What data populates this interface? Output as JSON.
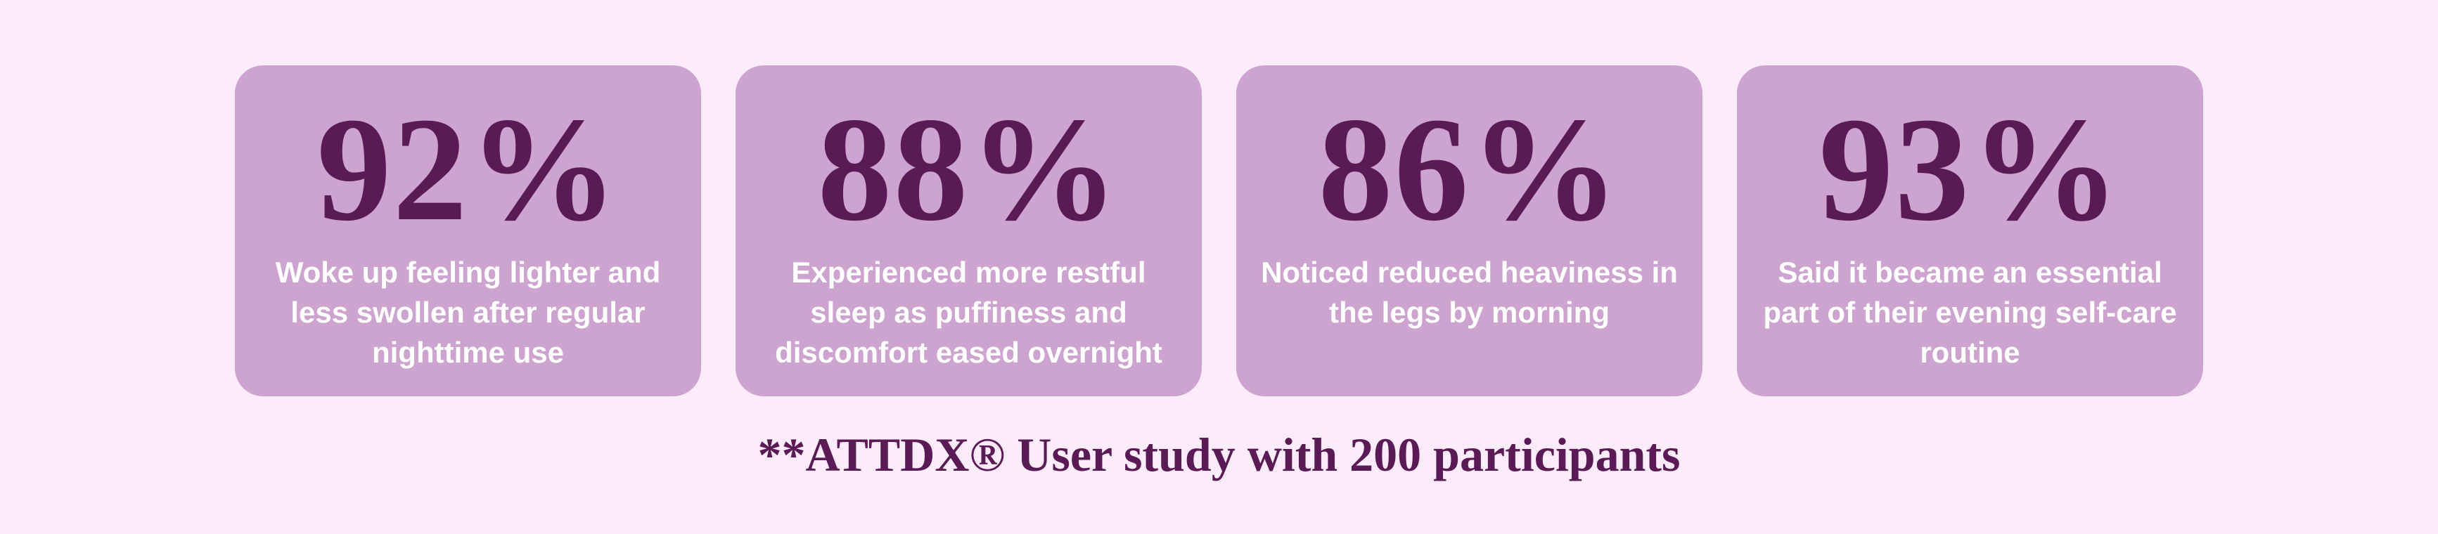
{
  "stats": [
    {
      "value": "92%",
      "description": "Woke up feeling lighter and less swollen after regular nighttime use"
    },
    {
      "value": "88%",
      "description": "Experienced more restful sleep as puffiness and discomfort eased overnight"
    },
    {
      "value": "86%",
      "description": "Noticed reduced heaviness in the legs by morning"
    },
    {
      "value": "93%",
      "description": "Said it became an essential part of their evening self-care routine"
    }
  ],
  "footnote": "**ATTDX® User study with 200 participants"
}
